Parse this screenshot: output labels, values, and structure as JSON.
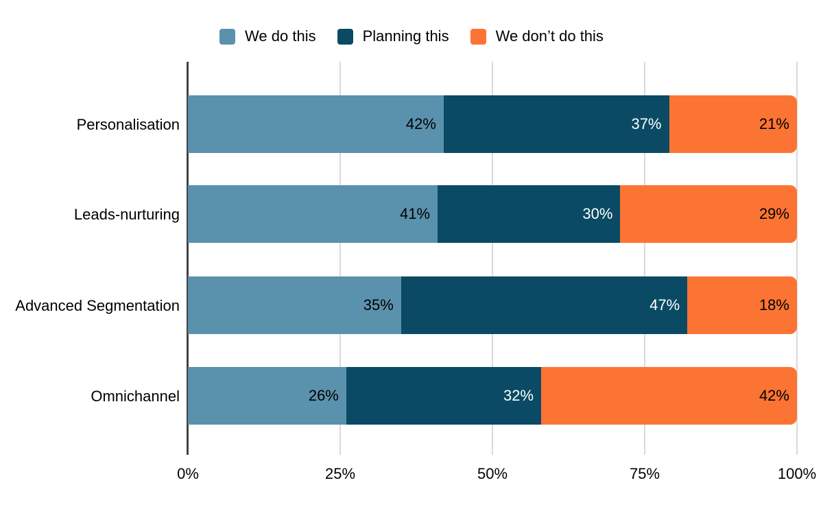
{
  "legend": {
    "position": "top-center",
    "items": [
      {
        "id": "we-do-this",
        "label": "We do this",
        "color": "#5a91ad"
      },
      {
        "id": "planning-this",
        "label": "Planning this",
        "color": "#0a4a64"
      },
      {
        "id": "we-dont-do-this",
        "label": "We don’t do this",
        "color": "#fc7434"
      }
    ]
  },
  "chart_data": {
    "type": "bar",
    "orientation": "horizontal",
    "stacked": true,
    "title": "",
    "xlabel": "",
    "ylabel": "",
    "categories": [
      "Personalisation",
      "Leads-nurturing",
      "Advanced Segmentation",
      "Omnichannel"
    ],
    "series": [
      {
        "name": "We do this",
        "color": "#5a91ad",
        "label_color": "#000000",
        "values": [
          42,
          41,
          35,
          26
        ]
      },
      {
        "name": "Planning this",
        "color": "#0a4a64",
        "label_color": "#ffffff",
        "values": [
          37,
          30,
          47,
          32
        ]
      },
      {
        "name": "We don’t do this",
        "color": "#fc7434",
        "label_color": "#000000",
        "values": [
          21,
          29,
          18,
          42
        ]
      }
    ],
    "value_suffix": "%",
    "x_axis": {
      "min": 0,
      "max": 100,
      "tick_labels": [
        "0%",
        "25%",
        "50%",
        "75%",
        "100%"
      ],
      "grid": true
    },
    "legend_position": "top"
  },
  "colors": {
    "background": "#ffffff",
    "gridline": "#d9d9d9",
    "axis_line": "#424242",
    "text": "#000000"
  }
}
